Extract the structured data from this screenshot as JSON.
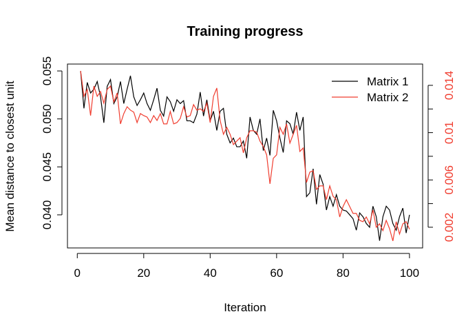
{
  "chart_data": {
    "type": "line",
    "title": "Training progress",
    "xlabel": "Iteration",
    "ylabel": "Mean distance to closest unit",
    "x": [
      1,
      2,
      3,
      4,
      5,
      6,
      7,
      8,
      9,
      10,
      11,
      12,
      13,
      14,
      15,
      16,
      17,
      18,
      19,
      20,
      21,
      22,
      23,
      24,
      25,
      26,
      27,
      28,
      29,
      30,
      31,
      32,
      33,
      34,
      35,
      36,
      37,
      38,
      39,
      40,
      41,
      42,
      43,
      44,
      45,
      46,
      47,
      48,
      49,
      50,
      51,
      52,
      53,
      54,
      55,
      56,
      57,
      58,
      59,
      60,
      61,
      62,
      63,
      64,
      65,
      66,
      67,
      68,
      69,
      70,
      71,
      72,
      73,
      74,
      75,
      76,
      77,
      78,
      79,
      80,
      81,
      82,
      83,
      84,
      85,
      86,
      87,
      88,
      89,
      90,
      91,
      92,
      93,
      94,
      95,
      96,
      97,
      98,
      99,
      100
    ],
    "series": [
      {
        "name": "Matrix 1",
        "color": "#000000",
        "axis": "y",
        "values": [
          0.055,
          0.0511,
          0.0538,
          0.0527,
          0.0531,
          0.0539,
          0.0523,
          0.0496,
          0.0534,
          0.0541,
          0.0516,
          0.0523,
          0.0539,
          0.0516,
          0.0531,
          0.0545,
          0.0523,
          0.0514,
          0.052,
          0.0527,
          0.0516,
          0.0509,
          0.052,
          0.0532,
          0.0509,
          0.0503,
          0.0523,
          0.0518,
          0.0508,
          0.052,
          0.0516,
          0.0519,
          0.0498,
          0.0498,
          0.0496,
          0.0505,
          0.0528,
          0.0503,
          0.052,
          0.0498,
          0.0508,
          0.0488,
          0.0508,
          0.0511,
          0.0484,
          0.0475,
          0.048,
          0.0471,
          0.0471,
          0.0477,
          0.0459,
          0.0502,
          0.0488,
          0.0484,
          0.05,
          0.0467,
          0.048,
          0.0462,
          0.0509,
          0.0498,
          0.048,
          0.0465,
          0.0498,
          0.0495,
          0.0484,
          0.0507,
          0.0488,
          0.0502,
          0.0419,
          0.0423,
          0.0448,
          0.0411,
          0.0442,
          0.0432,
          0.0405,
          0.0419,
          0.0409,
          0.0421,
          0.0409,
          0.0405,
          0.0404,
          0.04,
          0.0396,
          0.0384,
          0.0402,
          0.0398,
          0.0391,
          0.0387,
          0.0409,
          0.0398,
          0.0373,
          0.0398,
          0.0409,
          0.0405,
          0.0391,
          0.0384,
          0.0398,
          0.0407,
          0.0381,
          0.04
        ]
      },
      {
        "name": "Matrix 2",
        "color": "#f03c2e",
        "axis": "y2",
        "values": [
          0.01522,
          0.01307,
          0.01365,
          0.01144,
          0.01394,
          0.01307,
          0.01348,
          0.01249,
          0.01365,
          0.01394,
          0.0126,
          0.01336,
          0.01074,
          0.01161,
          0.01219,
          0.0119,
          0.01173,
          0.01085,
          0.01161,
          0.01144,
          0.01132,
          0.01085,
          0.01144,
          0.01103,
          0.01161,
          0.01074,
          0.01074,
          0.01179,
          0.01074,
          0.01085,
          0.0112,
          0.01219,
          0.01132,
          0.01144,
          0.01237,
          0.0119,
          0.01202,
          0.01179,
          0.01249,
          0.01085,
          0.01307,
          0.01377,
          0.01103,
          0.00986,
          0.01045,
          0.00986,
          0.00899,
          0.00928,
          0.00957,
          0.00829,
          0.00957,
          0.01016,
          0.01016,
          0.01004,
          0.00928,
          0.00882,
          0.00812,
          0.00567,
          0.00783,
          0.00812,
          0.01045,
          0.00986,
          0.01074,
          0.00911,
          0.00986,
          0.01062,
          0.00841,
          0.0087,
          0.00579,
          0.00666,
          0.00678,
          0.0052,
          0.0055,
          0.0055,
          0.00433,
          0.0055,
          0.00462,
          0.00433,
          0.00287,
          0.00375,
          0.00433,
          0.00375,
          0.00317,
          0.00317,
          0.00258,
          0.00247,
          0.00287,
          0.00229,
          0.00346,
          0.002,
          0.00229,
          0.00171,
          0.00258,
          0.00188,
          0.00084,
          0.00247,
          0.00142,
          0.00229,
          0.00247,
          0.00183
        ]
      }
    ],
    "xlim": [
      -2.96,
      103.96
    ],
    "xticks": [
      0,
      20,
      40,
      60,
      80,
      100
    ],
    "ylim": [
      0.03655,
      0.05572
    ],
    "yticks": [
      {
        "value": 0.04,
        "label": "0.040"
      },
      0.045,
      {
        "value": 0.05,
        "label": "0.050"
      },
      0.055
    ],
    "y2lim": [
      0.00025,
      0.0158
    ],
    "y2ticks": [
      0.002,
      0.006,
      0.01,
      0.014
    ],
    "y2minor_ticks": [
      0.004,
      0.008,
      0.012
    ],
    "y2color": "#f03c2e",
    "legend": "top-right"
  }
}
